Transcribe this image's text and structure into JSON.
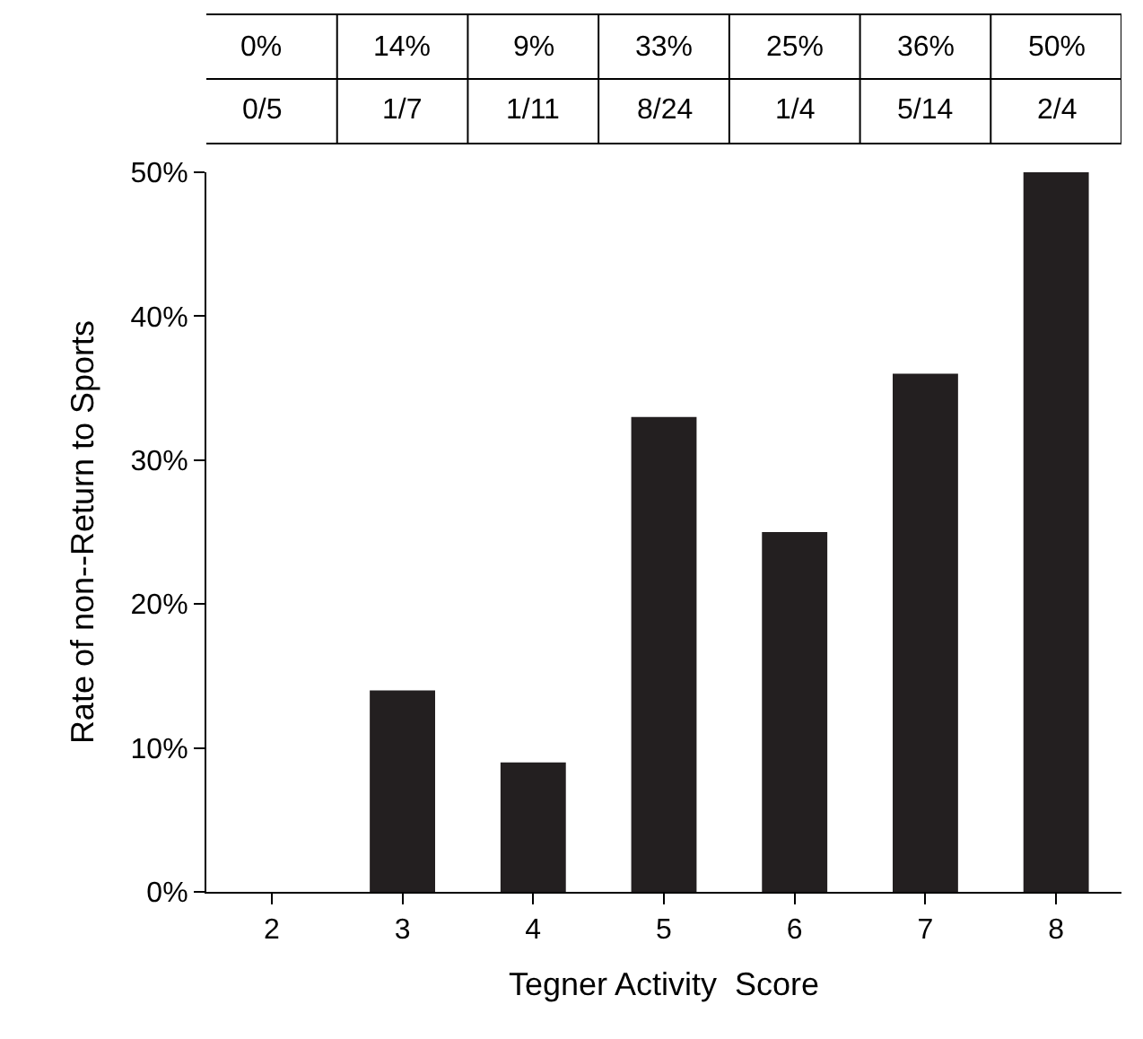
{
  "chart_data": {
    "type": "bar",
    "xlabel": "Tegner Activity  Score",
    "ylabel": "Rate of non--Return to Sports",
    "categories": [
      "2",
      "3",
      "4",
      "5",
      "6",
      "7",
      "8"
    ],
    "values": [
      0,
      14,
      9,
      33,
      25,
      36,
      50
    ],
    "color": "#231f20",
    "value_labels": [
      "0%",
      "14%",
      "9%",
      "33%",
      "25%",
      "36%",
      "50%"
    ],
    "annotations": [
      "0/5",
      "1/7",
      "1/11",
      "8/24",
      "1/4",
      "5/14",
      "2/4"
    ],
    "ylim": [
      0,
      50
    ],
    "yticks": [
      {
        "value": 0,
        "label": "0%"
      },
      {
        "value": 10,
        "label": "10%"
      },
      {
        "value": 20,
        "label": "20%"
      },
      {
        "value": 30,
        "label": "30%"
      },
      {
        "value": 40,
        "label": "40%"
      },
      {
        "value": 50,
        "label": "50%"
      }
    ],
    "legend": false
  }
}
